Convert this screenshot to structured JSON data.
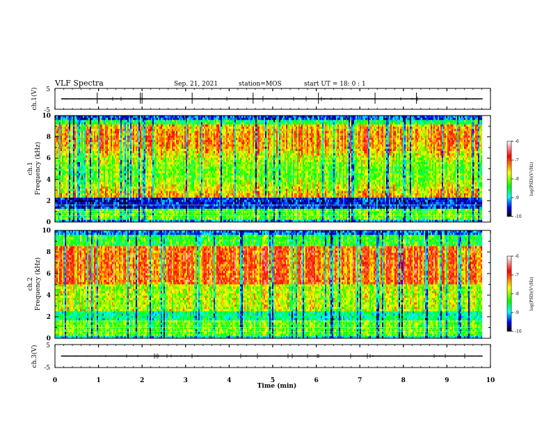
{
  "header": {
    "title": "VLF Spectra",
    "date": "Sep. 21, 2021",
    "station": "station=MOS",
    "start": "start UT =  18: 0  : 1"
  },
  "chart_data": [
    {
      "type": "line",
      "name_label": "ch.1(V)",
      "ylabel": "ch.1(V)",
      "yticks": [
        "5",
        "-5"
      ],
      "ylim": [
        -5,
        5
      ],
      "xlim": [
        0,
        10
      ],
      "trace_end": 9.82
    },
    {
      "type": "heatmap",
      "ylabel_top": "ch.1",
      "ylabel": "Frequency (kHz)",
      "yticks": [
        "0",
        "2",
        "4",
        "6",
        "8",
        "10"
      ],
      "ylim": [
        0,
        10
      ],
      "xlim": [
        0,
        10
      ],
      "data_end": 9.82,
      "colorbar": {
        "ticks": [
          "-6",
          "-7",
          "-8",
          "-9",
          "-10"
        ],
        "range": [
          -10,
          -6
        ],
        "label": "log(PSD)(V²/Hz)",
        "colors": [
          "#ffffff",
          "#ff0000",
          "#ffff00",
          "#00ff00",
          "#00ffff",
          "#0000ff",
          "#000000"
        ]
      }
    },
    {
      "type": "heatmap",
      "ylabel_top": "ch.2",
      "ylabel": "Frequency (kHz)",
      "yticks": [
        "0",
        "2",
        "4",
        "6",
        "8",
        "10"
      ],
      "ylim": [
        0,
        10
      ],
      "xlim": [
        0,
        10
      ],
      "data_end": 9.82,
      "colorbar": {
        "ticks": [
          "-6",
          "-7",
          "-8",
          "-9",
          "-10"
        ],
        "range": [
          -10,
          -6
        ],
        "label": "log(PSD)(V²/Hz)",
        "colors": [
          "#ffffff",
          "#ff0000",
          "#ffff00",
          "#00ff00",
          "#00ffff",
          "#0000ff",
          "#000000"
        ]
      }
    },
    {
      "type": "line",
      "name_label": "ch.3(V)",
      "ylabel": "ch.3(V)",
      "yticks": [
        "5",
        "-5"
      ],
      "ylim": [
        -5,
        5
      ],
      "xlim": [
        0,
        10
      ],
      "trace_end": 9.82
    }
  ],
  "xaxis": {
    "label": "Time (min)",
    "ticks": [
      "0",
      "1",
      "2",
      "3",
      "4",
      "5",
      "6",
      "7",
      "8",
      "9",
      "10"
    ],
    "range": [
      0,
      10
    ]
  }
}
